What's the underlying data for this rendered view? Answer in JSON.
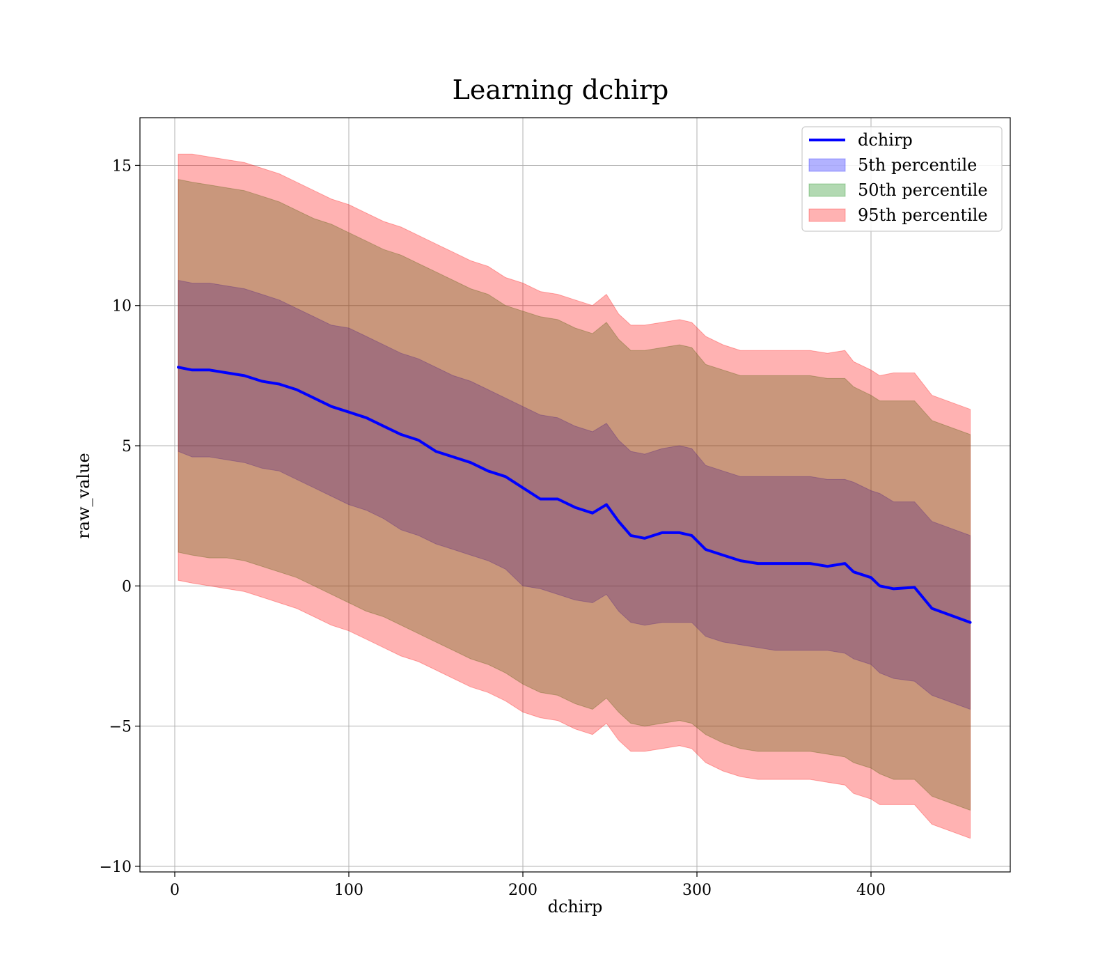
{
  "chart_data": {
    "type": "line",
    "title": "Learning dchirp",
    "xlabel": "dchirp",
    "ylabel": "raw_value",
    "xlim": [
      -20,
      480
    ],
    "ylim": [
      -10.2,
      16.7
    ],
    "x_ticks": [
      0,
      100,
      200,
      300,
      400
    ],
    "y_ticks": [
      -10,
      -5,
      0,
      5,
      10,
      15
    ],
    "x_tick_labels": [
      "0",
      "100",
      "200",
      "300",
      "400"
    ],
    "y_tick_labels": [
      "−10",
      "−5",
      "0",
      "5",
      "10",
      "15"
    ],
    "grid": true,
    "legend_position": "top-right",
    "x": [
      2,
      10,
      20,
      30,
      40,
      50,
      60,
      70,
      80,
      90,
      100,
      110,
      120,
      130,
      140,
      150,
      160,
      170,
      180,
      190,
      200,
      210,
      220,
      230,
      240,
      248,
      255,
      262,
      270,
      280,
      290,
      297,
      305,
      315,
      325,
      335,
      345,
      355,
      365,
      375,
      385,
      390,
      400,
      405,
      413,
      425,
      435,
      457
    ],
    "series": [
      {
        "name": "dchirp",
        "type": "line",
        "color": "#0000ff",
        "values": [
          7.8,
          7.7,
          7.7,
          7.6,
          7.5,
          7.3,
          7.2,
          7.0,
          6.7,
          6.4,
          6.2,
          6.0,
          5.7,
          5.4,
          5.2,
          4.8,
          4.6,
          4.4,
          4.1,
          3.9,
          3.5,
          3.1,
          3.1,
          2.8,
          2.6,
          2.9,
          2.3,
          1.8,
          1.7,
          1.9,
          1.9,
          1.8,
          1.3,
          1.1,
          0.9,
          0.8,
          0.8,
          0.8,
          0.8,
          0.7,
          0.8,
          0.5,
          0.3,
          0.0,
          -0.1,
          -0.05,
          -0.8,
          -1.3
        ]
      },
      {
        "name": "5th percentile",
        "type": "band",
        "color": "#0000ff",
        "lower": [
          4.8,
          4.6,
          4.6,
          4.5,
          4.4,
          4.2,
          4.1,
          3.8,
          3.5,
          3.2,
          2.9,
          2.7,
          2.4,
          2.0,
          1.8,
          1.5,
          1.3,
          1.1,
          0.9,
          0.6,
          0.0,
          -0.1,
          -0.3,
          -0.5,
          -0.6,
          -0.3,
          -0.9,
          -1.3,
          -1.4,
          -1.3,
          -1.3,
          -1.3,
          -1.8,
          -2.0,
          -2.1,
          -2.2,
          -2.3,
          -2.3,
          -2.3,
          -2.3,
          -2.4,
          -2.6,
          -2.8,
          -3.1,
          -3.3,
          -3.4,
          -3.9,
          -4.4
        ],
        "upper": [
          10.9,
          10.8,
          10.8,
          10.7,
          10.6,
          10.4,
          10.2,
          9.9,
          9.6,
          9.3,
          9.2,
          8.9,
          8.6,
          8.3,
          8.1,
          7.8,
          7.5,
          7.3,
          7.0,
          6.7,
          6.4,
          6.1,
          6.0,
          5.7,
          5.5,
          5.8,
          5.2,
          4.8,
          4.7,
          4.9,
          5.0,
          4.9,
          4.3,
          4.1,
          3.9,
          3.9,
          3.9,
          3.9,
          3.9,
          3.8,
          3.8,
          3.7,
          3.4,
          3.3,
          3.0,
          3.0,
          2.3,
          1.8
        ]
      },
      {
        "name": "50th percentile",
        "type": "band",
        "color": "#008000",
        "lower": [
          1.2,
          1.1,
          1.0,
          1.0,
          0.9,
          0.7,
          0.5,
          0.3,
          0.0,
          -0.3,
          -0.6,
          -0.9,
          -1.1,
          -1.4,
          -1.7,
          -2.0,
          -2.3,
          -2.6,
          -2.8,
          -3.1,
          -3.5,
          -3.8,
          -3.9,
          -4.2,
          -4.4,
          -4.0,
          -4.5,
          -4.9,
          -5.0,
          -4.9,
          -4.8,
          -4.9,
          -5.3,
          -5.6,
          -5.8,
          -5.9,
          -5.9,
          -5.9,
          -5.9,
          -6.0,
          -6.1,
          -6.3,
          -6.5,
          -6.7,
          -6.9,
          -6.9,
          -7.5,
          -8.0
        ],
        "upper": [
          14.5,
          14.4,
          14.3,
          14.2,
          14.1,
          13.9,
          13.7,
          13.4,
          13.1,
          12.9,
          12.6,
          12.3,
          12.0,
          11.8,
          11.5,
          11.2,
          10.9,
          10.6,
          10.4,
          10.0,
          9.8,
          9.6,
          9.5,
          9.2,
          9.0,
          9.4,
          8.8,
          8.4,
          8.4,
          8.5,
          8.6,
          8.5,
          7.9,
          7.7,
          7.5,
          7.5,
          7.5,
          7.5,
          7.5,
          7.4,
          7.4,
          7.1,
          6.8,
          6.6,
          6.6,
          6.6,
          5.9,
          5.4
        ]
      },
      {
        "name": "95th percentile",
        "type": "band",
        "color": "#ff0000",
        "lower": [
          0.2,
          0.1,
          0.0,
          -0.1,
          -0.2,
          -0.4,
          -0.6,
          -0.8,
          -1.1,
          -1.4,
          -1.6,
          -1.9,
          -2.2,
          -2.5,
          -2.7,
          -3.0,
          -3.3,
          -3.6,
          -3.8,
          -4.1,
          -4.5,
          -4.7,
          -4.8,
          -5.1,
          -5.3,
          -4.9,
          -5.5,
          -5.9,
          -5.9,
          -5.8,
          -5.7,
          -5.8,
          -6.3,
          -6.6,
          -6.8,
          -6.9,
          -6.9,
          -6.9,
          -6.9,
          -7.0,
          -7.1,
          -7.4,
          -7.6,
          -7.8,
          -7.8,
          -7.8,
          -8.5,
          -9.0
        ],
        "upper": [
          15.4,
          15.4,
          15.3,
          15.2,
          15.1,
          14.9,
          14.7,
          14.4,
          14.1,
          13.8,
          13.6,
          13.3,
          13.0,
          12.8,
          12.5,
          12.2,
          11.9,
          11.6,
          11.4,
          11.0,
          10.8,
          10.5,
          10.4,
          10.2,
          10.0,
          10.4,
          9.7,
          9.3,
          9.3,
          9.4,
          9.5,
          9.4,
          8.9,
          8.6,
          8.4,
          8.4,
          8.4,
          8.4,
          8.4,
          8.3,
          8.4,
          8.0,
          7.7,
          7.5,
          7.6,
          7.6,
          6.8,
          6.3
        ]
      }
    ]
  }
}
